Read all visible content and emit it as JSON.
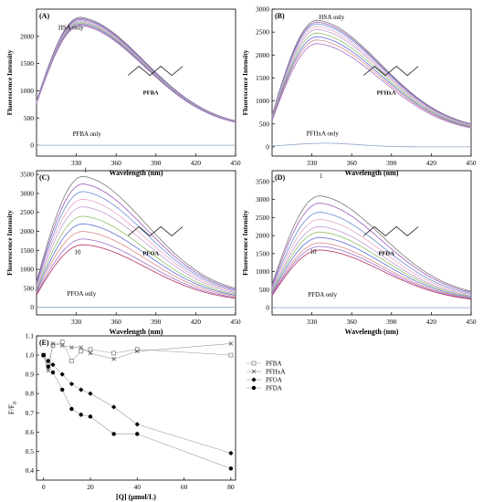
{
  "chart_data": [
    {
      "panel": "(A)",
      "type": "line",
      "xlabel": "Wavelength (nm)",
      "ylabel": "Fluorescence Intensity",
      "xlim": [
        300,
        450
      ],
      "ylim": [
        -200,
        2500
      ],
      "xticks": [
        330,
        360,
        390,
        420,
        450
      ],
      "yticks": [
        0,
        500,
        1000,
        1500,
        2000
      ],
      "molecule_label": "PFBA",
      "annotations": [
        {
          "text": "HSA only",
          "x": 326,
          "y": 2120
        },
        {
          "text": "PFBA only",
          "x": 338,
          "y": 170
        }
      ],
      "curve_family": {
        "peak_x": 333,
        "peak_values": [
          2350,
          2330,
          2310,
          2290,
          2270,
          2250,
          2230,
          2210,
          2200
        ],
        "value_at_300": 820,
        "value_at_450": 320
      },
      "only_curve": {
        "name": "PFBA only",
        "level": 0
      }
    },
    {
      "panel": "(B)",
      "type": "line",
      "xlabel": "Wavelength (nm)",
      "ylabel": "Fluorescence Intensity",
      "xlim": [
        300,
        450
      ],
      "ylim": [
        -200,
        3000
      ],
      "xticks": [
        330,
        360,
        390,
        420,
        450
      ],
      "yticks": [
        0,
        500,
        1000,
        1500,
        2000,
        2500,
        3000
      ],
      "molecule_label": "PFHxA",
      "annotations": [
        {
          "text": "HSA only",
          "x": 345,
          "y": 2780
        },
        {
          "text": "PFHxA only",
          "x": 338,
          "y": 250
        }
      ],
      "curve_family": {
        "peak_x": 334,
        "peak_values": [
          2760,
          2720,
          2680,
          2620,
          2560,
          2480,
          2400,
          2330,
          2250
        ],
        "value_at_300": 700,
        "value_at_450": 350
      },
      "only_curve": {
        "name": "PFHxA only",
        "level": 80
      }
    },
    {
      "panel": "(C)",
      "type": "line",
      "xlabel": "Wavelength (nm)",
      "ylabel": "Fluorescence Intensity",
      "xlim": [
        300,
        450
      ],
      "ylim": [
        -200,
        3600
      ],
      "xticks": [
        330,
        360,
        390,
        420,
        450
      ],
      "yticks": [
        0,
        500,
        1000,
        1500,
        2000,
        2500,
        3000,
        3500
      ],
      "molecule_label": "PFOA",
      "annotations": [
        {
          "text": "1",
          "x": 337,
          "y": 3560
        },
        {
          "text": "10",
          "x": 331,
          "y": 1400
        },
        {
          "text": "PFOA only",
          "x": 334,
          "y": 310
        }
      ],
      "curve_family": {
        "peak_x": 335,
        "peak_values": [
          3450,
          3250,
          3050,
          2850,
          2650,
          2400,
          2200,
          2000,
          1800,
          1650
        ],
        "value_at_300": 680,
        "value_at_450": 300
      },
      "only_curve": {
        "name": "PFOA only",
        "level": 0
      }
    },
    {
      "panel": "(D)",
      "type": "line",
      "xlabel": "Wavelength (nm)",
      "ylabel": "Fluorescence Intensity",
      "xlim": [
        300,
        450
      ],
      "ylim": [
        -200,
        3800
      ],
      "xticks": [
        330,
        360,
        390,
        420,
        450
      ],
      "yticks": [
        0,
        500,
        1000,
        1500,
        2000,
        2500,
        3000,
        3500
      ],
      "molecule_label": "PFDA",
      "annotations": [
        {
          "text": "1",
          "x": 337,
          "y": 3600
        },
        {
          "text": "10",
          "x": 331,
          "y": 1500
        },
        {
          "text": "PFDA only",
          "x": 338,
          "y": 310
        }
      ],
      "curve_family": {
        "peak_x": 336,
        "peak_values": [
          3100,
          2900,
          2650,
          2450,
          2250,
          2100,
          1950,
          1800,
          1700,
          1600
        ],
        "value_at_300": 650,
        "value_at_450": 280
      },
      "only_curve": {
        "name": "PFDA only",
        "level": 0
      }
    },
    {
      "panel": "(E)",
      "type": "scatter",
      "xlabel": "[Q] (µmol/L)",
      "ylabel": "F/F",
      "ylabel_sub": "0",
      "xlim": [
        -3,
        82
      ],
      "ylim": [
        0.35,
        1.1
      ],
      "xticks": [
        0,
        20,
        40,
        60,
        80
      ],
      "yticks": [
        0.4,
        0.5,
        0.6,
        0.7,
        0.8,
        0.9,
        1.0,
        1.1
      ],
      "ytick_labels": [
        "0.4",
        "0.5",
        "0.6",
        "0.7",
        "0.8",
        "0.9",
        "1.0",
        "1.1"
      ],
      "legend_position": "right",
      "series": [
        {
          "name": "PFBA",
          "marker": "open-square",
          "x": [
            0,
            2,
            4,
            8,
            12,
            16,
            20,
            30,
            40,
            80
          ],
          "y": [
            1.0,
            0.95,
            1.05,
            1.07,
            0.97,
            1.02,
            1.03,
            1.01,
            1.03,
            1.0
          ]
        },
        {
          "name": "PFHxA",
          "marker": "cross",
          "x": [
            0,
            2,
            4,
            8,
            12,
            16,
            20,
            30,
            40,
            80
          ],
          "y": [
            1.0,
            0.92,
            1.06,
            1.05,
            1.04,
            1.04,
            1.01,
            0.98,
            1.02,
            1.06
          ]
        },
        {
          "name": "PFOA",
          "marker": "filled-diamond",
          "x": [
            0,
            2,
            4,
            8,
            12,
            16,
            20,
            30,
            40,
            80
          ],
          "y": [
            1.0,
            0.97,
            0.95,
            0.9,
            0.85,
            0.82,
            0.8,
            0.73,
            0.64,
            0.49
          ]
        },
        {
          "name": "PFDA",
          "marker": "filled-circle",
          "x": [
            0,
            2,
            4,
            8,
            12,
            16,
            20,
            30,
            40,
            80
          ],
          "y": [
            1.0,
            0.94,
            0.91,
            0.82,
            0.72,
            0.69,
            0.68,
            0.59,
            0.59,
            0.41
          ]
        }
      ]
    }
  ]
}
